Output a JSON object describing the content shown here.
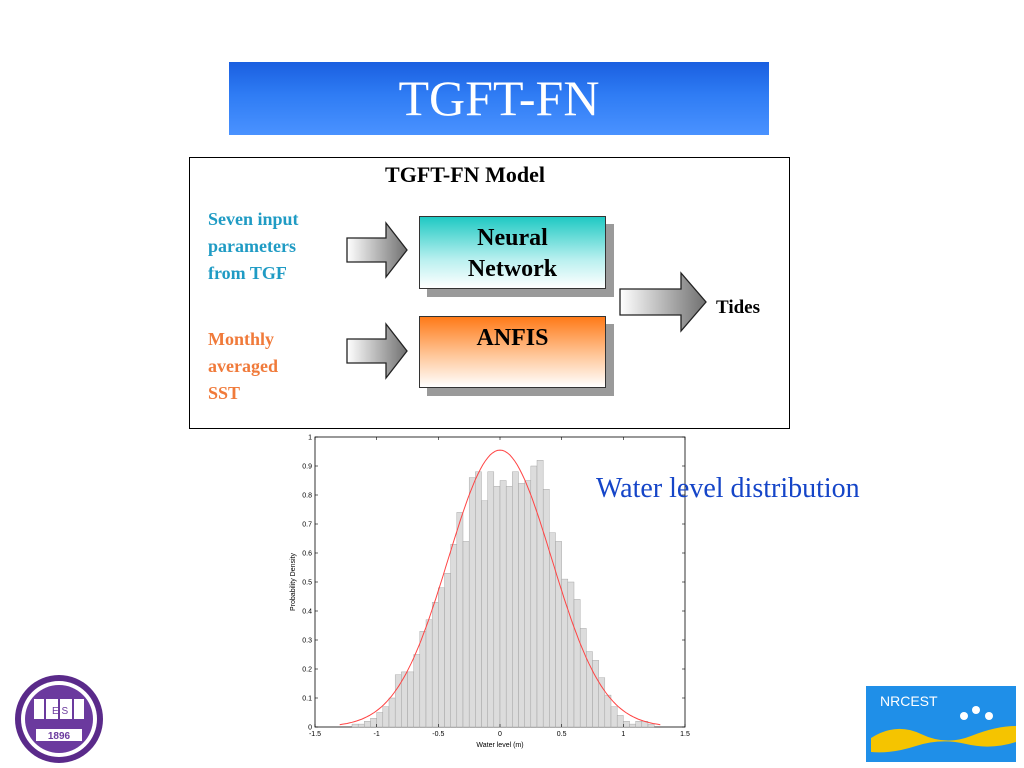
{
  "slide": {
    "title": "TGFT-FN"
  },
  "diagram": {
    "title": "TGFT-FN Model",
    "input1_lines": [
      "Seven input",
      "parameters",
      "from TGF"
    ],
    "input2_lines": [
      "Monthly",
      "averaged",
      "SST"
    ],
    "nn_lines": [
      "Neural",
      "Network"
    ],
    "anfis_label": "ANFIS",
    "output_label": "Tides",
    "colors": {
      "input1": "#1f9bc4",
      "input2": "#f07a3a"
    }
  },
  "chart_caption": "Water level distribution",
  "chart_data": {
    "type": "bar",
    "xlabel": "Water level (m)",
    "ylabel": "Probability Density",
    "xlim": [
      -1.5,
      1.5
    ],
    "ylim": [
      0,
      1
    ],
    "xticks": [
      "-1.5",
      "-1",
      "-0.5",
      "0",
      "0.5",
      "1",
      "1.5"
    ],
    "yticks": [
      "0",
      "0.1",
      "0.2",
      "0.3",
      "0.4",
      "0.5",
      "0.6",
      "0.7",
      "0.8",
      "0.9",
      "1"
    ],
    "bin_width": 0.05,
    "bin_start": -1.2,
    "values": [
      0.01,
      0.01,
      0.02,
      0.03,
      0.05,
      0.07,
      0.1,
      0.18,
      0.19,
      0.19,
      0.25,
      0.33,
      0.37,
      0.43,
      0.48,
      0.53,
      0.63,
      0.74,
      0.64,
      0.86,
      0.88,
      0.78,
      0.88,
      0.83,
      0.85,
      0.83,
      0.88,
      0.84,
      0.85,
      0.9,
      0.92,
      0.82,
      0.67,
      0.64,
      0.51,
      0.5,
      0.44,
      0.34,
      0.26,
      0.23,
      0.17,
      0.11,
      0.07,
      0.04,
      0.02,
      0.01,
      0.02,
      0.02,
      0.01
    ],
    "fit_curve": {
      "type": "normal",
      "mean": 0.0,
      "peak": 0.955,
      "sigma": 0.42
    },
    "colors": {
      "bars": "#dcdcdc",
      "bar_edge": "#9a9a9a",
      "fit": "#ff4444"
    }
  },
  "logos": {
    "left": {
      "name": "university-seal",
      "text_band": "1896",
      "text_mark": "E S"
    },
    "right": {
      "name": "nrcest-logo",
      "text": "NRCEST"
    }
  }
}
